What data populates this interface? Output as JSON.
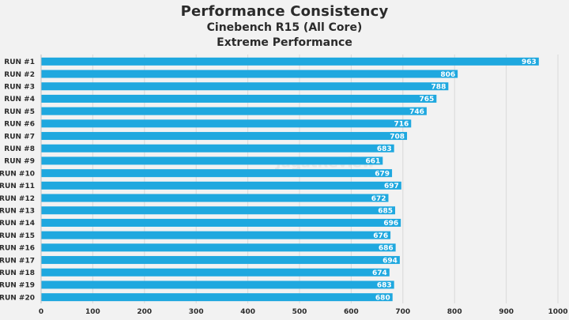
{
  "chart_data": {
    "type": "bar",
    "orientation": "horizontal",
    "title": "Performance Consistency",
    "subtitle": "Cinebench R15 (All Core)",
    "subtitle2": "Extreme Performance",
    "categories": [
      "RUN #1",
      "RUN #2",
      "RUN #3",
      "RUN #4",
      "RUN #5",
      "RUN #6",
      "RUN #7",
      "RUN #8",
      "RUN #9",
      "RUN #10",
      "RUN #11",
      "RUN #12",
      "RUN #13",
      "RUN #14",
      "RUN #15",
      "RUN #16",
      "RUN #17",
      "RUN #18",
      "RUN #19",
      "RUN #20"
    ],
    "values": [
      963,
      806,
      788,
      765,
      746,
      716,
      708,
      683,
      661,
      679,
      697,
      672,
      685,
      696,
      676,
      686,
      694,
      674,
      683,
      680
    ],
    "xlim": [
      0,
      1000
    ],
    "xticks": [
      0,
      100,
      200,
      300,
      400,
      500,
      600,
      700,
      800,
      900,
      1000
    ],
    "xlabel": "",
    "ylabel": "",
    "grid": true,
    "bar_color": "#1fa8df",
    "grid_color": "#d9d9d9",
    "watermark": "JagatReview"
  }
}
